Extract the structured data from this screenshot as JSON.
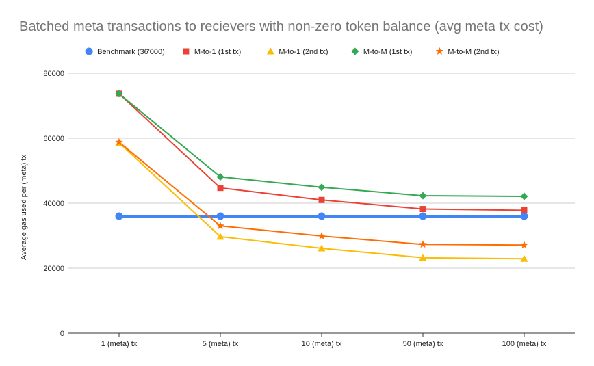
{
  "chart_data": {
    "type": "line",
    "title": "Batched meta transactions to recievers with non-zero token balance (avg meta tx cost)",
    "xlabel": "",
    "ylabel": "Average gas used per (meta) tx",
    "categories": [
      "1 (meta) tx",
      "5 (meta) tx",
      "10 (meta) tx",
      "50 (meta) tx",
      "100 (meta) tx"
    ],
    "ylim": [
      0,
      80000
    ],
    "yticks": [
      "0",
      "20000",
      "40000",
      "60000",
      "80000"
    ],
    "grid": "horizontal",
    "legend_position": "top",
    "series": [
      {
        "name": "Benchmark (36'000)",
        "color": "#4285f4",
        "marker": "circle",
        "values": [
          36000,
          36000,
          36000,
          36000,
          36000
        ]
      },
      {
        "name": "M-to-1 (1st tx)",
        "color": "#ea4335",
        "marker": "square",
        "values": [
          73700,
          44700,
          41000,
          38200,
          37800
        ]
      },
      {
        "name": "M-to-1 (2nd tx)",
        "color": "#fbbc04",
        "marker": "triangle",
        "values": [
          58600,
          29700,
          26100,
          23200,
          22900
        ]
      },
      {
        "name": "M-to-M (1st tx)",
        "color": "#34a853",
        "marker": "diamond",
        "values": [
          73700,
          48100,
          44900,
          42300,
          42100
        ]
      },
      {
        "name": "M-to-M (2nd tx)",
        "color": "#ff6d01",
        "marker": "star",
        "values": [
          58800,
          33000,
          29900,
          27300,
          27100
        ]
      }
    ]
  }
}
